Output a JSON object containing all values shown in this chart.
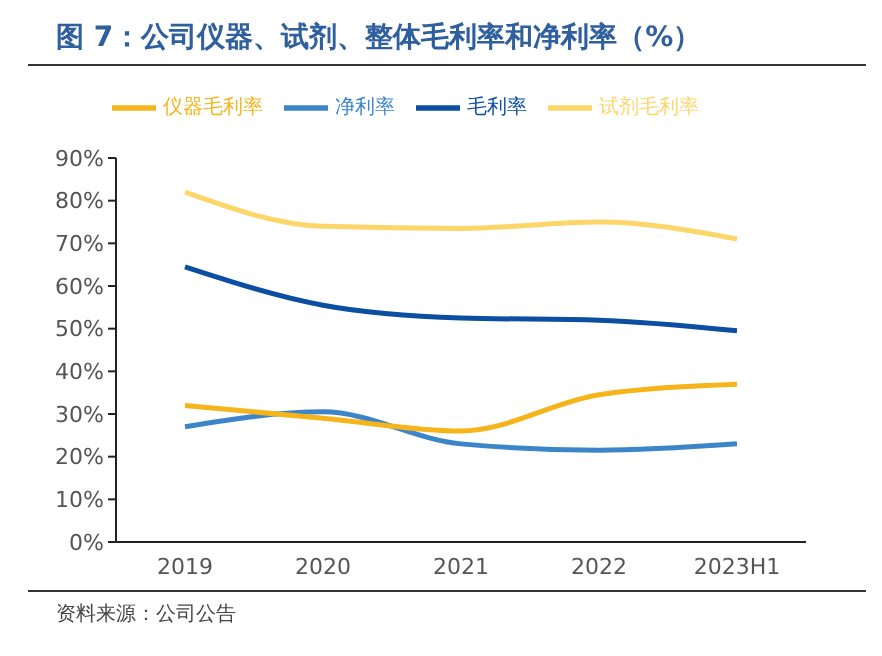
{
  "chart_data": {
    "type": "line",
    "title": "图 7：公司仪器、试剂、整体毛利率和净利率（%）",
    "categories": [
      "2019",
      "2020",
      "2021",
      "2022",
      "2023H1"
    ],
    "series": [
      {
        "name": "毛利率",
        "color": "#0b4ea2",
        "values": [
          64.5,
          55.5,
          52.5,
          52,
          49.5
        ]
      },
      {
        "name": "净利率",
        "color": "#3d85c9",
        "values": [
          27,
          30.5,
          23,
          21.5,
          23
        ]
      },
      {
        "name": "仪器毛利率",
        "color": "#f5b41a",
        "values": [
          32,
          29,
          26,
          34.5,
          37
        ]
      },
      {
        "name": "试剂毛利率",
        "color": "#fdd66a",
        "values": [
          82,
          74,
          73.5,
          75,
          71
        ]
      }
    ],
    "ylim": [
      0,
      90
    ],
    "yticks": [
      {
        "value": 0,
        "label": "0%"
      },
      {
        "value": 10,
        "label": "10%"
      },
      {
        "value": 20,
        "label": "20%"
      },
      {
        "value": 30,
        "label": "30%"
      },
      {
        "value": 40,
        "label": "40%"
      },
      {
        "value": 50,
        "label": "50%"
      },
      {
        "value": 60,
        "label": "60%"
      },
      {
        "value": 70,
        "label": "70%"
      },
      {
        "value": 80,
        "label": "80%"
      },
      {
        "value": 90,
        "label": "90%"
      }
    ],
    "grid": false,
    "legend": "top",
    "marker": "none",
    "line_style": "solid",
    "annotations": [
      "资料来源：公司公告"
    ]
  }
}
